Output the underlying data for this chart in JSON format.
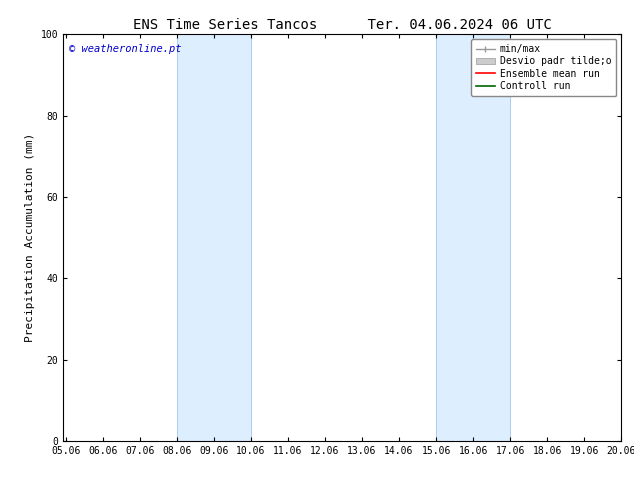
{
  "title_left": "ENS Time Series Tancos",
  "title_right": "Ter. 04.06.2024 06 UTC",
  "ylabel": "Precipitation Accumulation (mm)",
  "watermark": "© weatheronline.pt",
  "watermark_color": "#0000cc",
  "xlim_min": 5.0,
  "xlim_max": 20.06,
  "ylim_min": 0,
  "ylim_max": 100,
  "xticks": [
    5.06,
    6.06,
    7.06,
    8.06,
    9.06,
    10.06,
    11.06,
    12.06,
    13.06,
    14.06,
    15.06,
    16.06,
    17.06,
    18.06,
    19.06,
    20.06
  ],
  "xticklabels": [
    "05.06",
    "06.06",
    "07.06",
    "08.06",
    "09.06",
    "10.06",
    "11.06",
    "12.06",
    "13.06",
    "14.06",
    "15.06",
    "16.06",
    "17.06",
    "18.06",
    "19.06",
    "20.06"
  ],
  "yticks": [
    0,
    20,
    40,
    60,
    80,
    100
  ],
  "shaded_bands": [
    {
      "x_start": 8.06,
      "x_end": 10.06
    },
    {
      "x_start": 15.06,
      "x_end": 17.06
    }
  ],
  "shade_color": "#ddeeff",
  "shade_edge_color": "#b0ccee",
  "background_color": "#ffffff",
  "legend_items": [
    {
      "label": "min/max",
      "color": "#999999"
    },
    {
      "label": "Desvio padr tilde;o",
      "color": "#cccccc"
    },
    {
      "label": "Ensemble mean run",
      "color": "#ff0000"
    },
    {
      "label": "Controll run",
      "color": "#006600"
    }
  ],
  "title_fontsize": 10,
  "tick_fontsize": 7,
  "ylabel_fontsize": 8,
  "legend_fontsize": 7,
  "watermark_fontsize": 7.5
}
